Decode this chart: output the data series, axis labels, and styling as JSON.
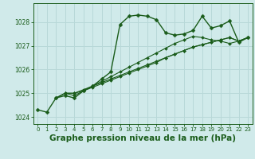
{
  "bg_color": "#d0eaea",
  "grid_color": "#b8d8d8",
  "line_color": "#1a5c1a",
  "marker_color": "#1a5c1a",
  "xlabel": "Graphe pression niveau de la mer (hPa)",
  "xlabel_fontsize": 7.5,
  "xlim": [
    -0.5,
    23.5
  ],
  "ylim": [
    1023.7,
    1028.8
  ],
  "yticks": [
    1024,
    1025,
    1026,
    1027,
    1028
  ],
  "xticks": [
    0,
    1,
    2,
    3,
    4,
    5,
    6,
    7,
    8,
    9,
    10,
    11,
    12,
    13,
    14,
    15,
    16,
    17,
    18,
    19,
    20,
    21,
    22,
    23
  ],
  "series": [
    {
      "x": [
        0,
        1,
        2,
        3,
        4,
        5,
        6,
        7,
        8,
        9,
        10,
        11,
        12,
        13,
        14,
        15,
        16,
        17,
        18,
        19,
        20,
        21,
        22,
        23
      ],
      "y": [
        1024.3,
        1024.2,
        1024.8,
        1024.9,
        1024.8,
        1025.1,
        1025.3,
        1025.6,
        1025.9,
        1027.9,
        1028.25,
        1028.3,
        1028.25,
        1028.1,
        1027.55,
        1027.45,
        1027.5,
        1027.65,
        1028.25,
        1027.75,
        1027.85,
        1028.05,
        1027.15,
        1027.35
      ],
      "marker": "D",
      "ms": 2.5,
      "lw": 1.0
    },
    {
      "x": [
        2,
        3,
        4,
        5,
        6,
        7,
        8,
        9,
        10,
        11,
        12,
        13,
        14,
        15,
        16,
        17,
        18,
        19,
        20,
        21,
        22,
        23
      ],
      "y": [
        1024.8,
        1025.0,
        1025.0,
        1025.1,
        1025.25,
        1025.4,
        1025.55,
        1025.7,
        1025.85,
        1026.0,
        1026.15,
        1026.3,
        1026.5,
        1026.65,
        1026.8,
        1026.95,
        1027.05,
        1027.15,
        1027.25,
        1027.35,
        1027.2,
        1027.35
      ],
      "marker": "D",
      "ms": 2.0,
      "lw": 0.8
    },
    {
      "x": [
        2,
        3,
        4,
        5,
        6,
        7,
        8,
        9,
        10,
        11,
        12,
        13,
        14,
        15,
        16,
        17,
        18,
        19,
        20,
        21,
        22,
        23
      ],
      "y": [
        1024.8,
        1025.0,
        1025.0,
        1025.15,
        1025.3,
        1025.45,
        1025.6,
        1025.75,
        1025.9,
        1026.05,
        1026.2,
        1026.35,
        1026.5,
        1026.65,
        1026.8,
        1026.95,
        1027.05,
        1027.15,
        1027.25,
        1027.35,
        1027.2,
        1027.35
      ],
      "marker": "D",
      "ms": 2.0,
      "lw": 0.8
    },
    {
      "x": [
        2,
        3,
        4,
        5,
        6,
        7,
        8,
        9,
        10,
        11,
        12,
        13,
        14,
        15,
        16,
        17,
        18,
        19,
        20,
        21,
        22,
        23
      ],
      "y": [
        1024.8,
        1025.0,
        1024.9,
        1025.1,
        1025.3,
        1025.5,
        1025.7,
        1025.9,
        1026.1,
        1026.3,
        1026.5,
        1026.7,
        1026.9,
        1027.1,
        1027.25,
        1027.4,
        1027.35,
        1027.25,
        1027.2,
        1027.1,
        1027.2,
        1027.35
      ],
      "marker": "D",
      "ms": 2.0,
      "lw": 0.8
    }
  ]
}
